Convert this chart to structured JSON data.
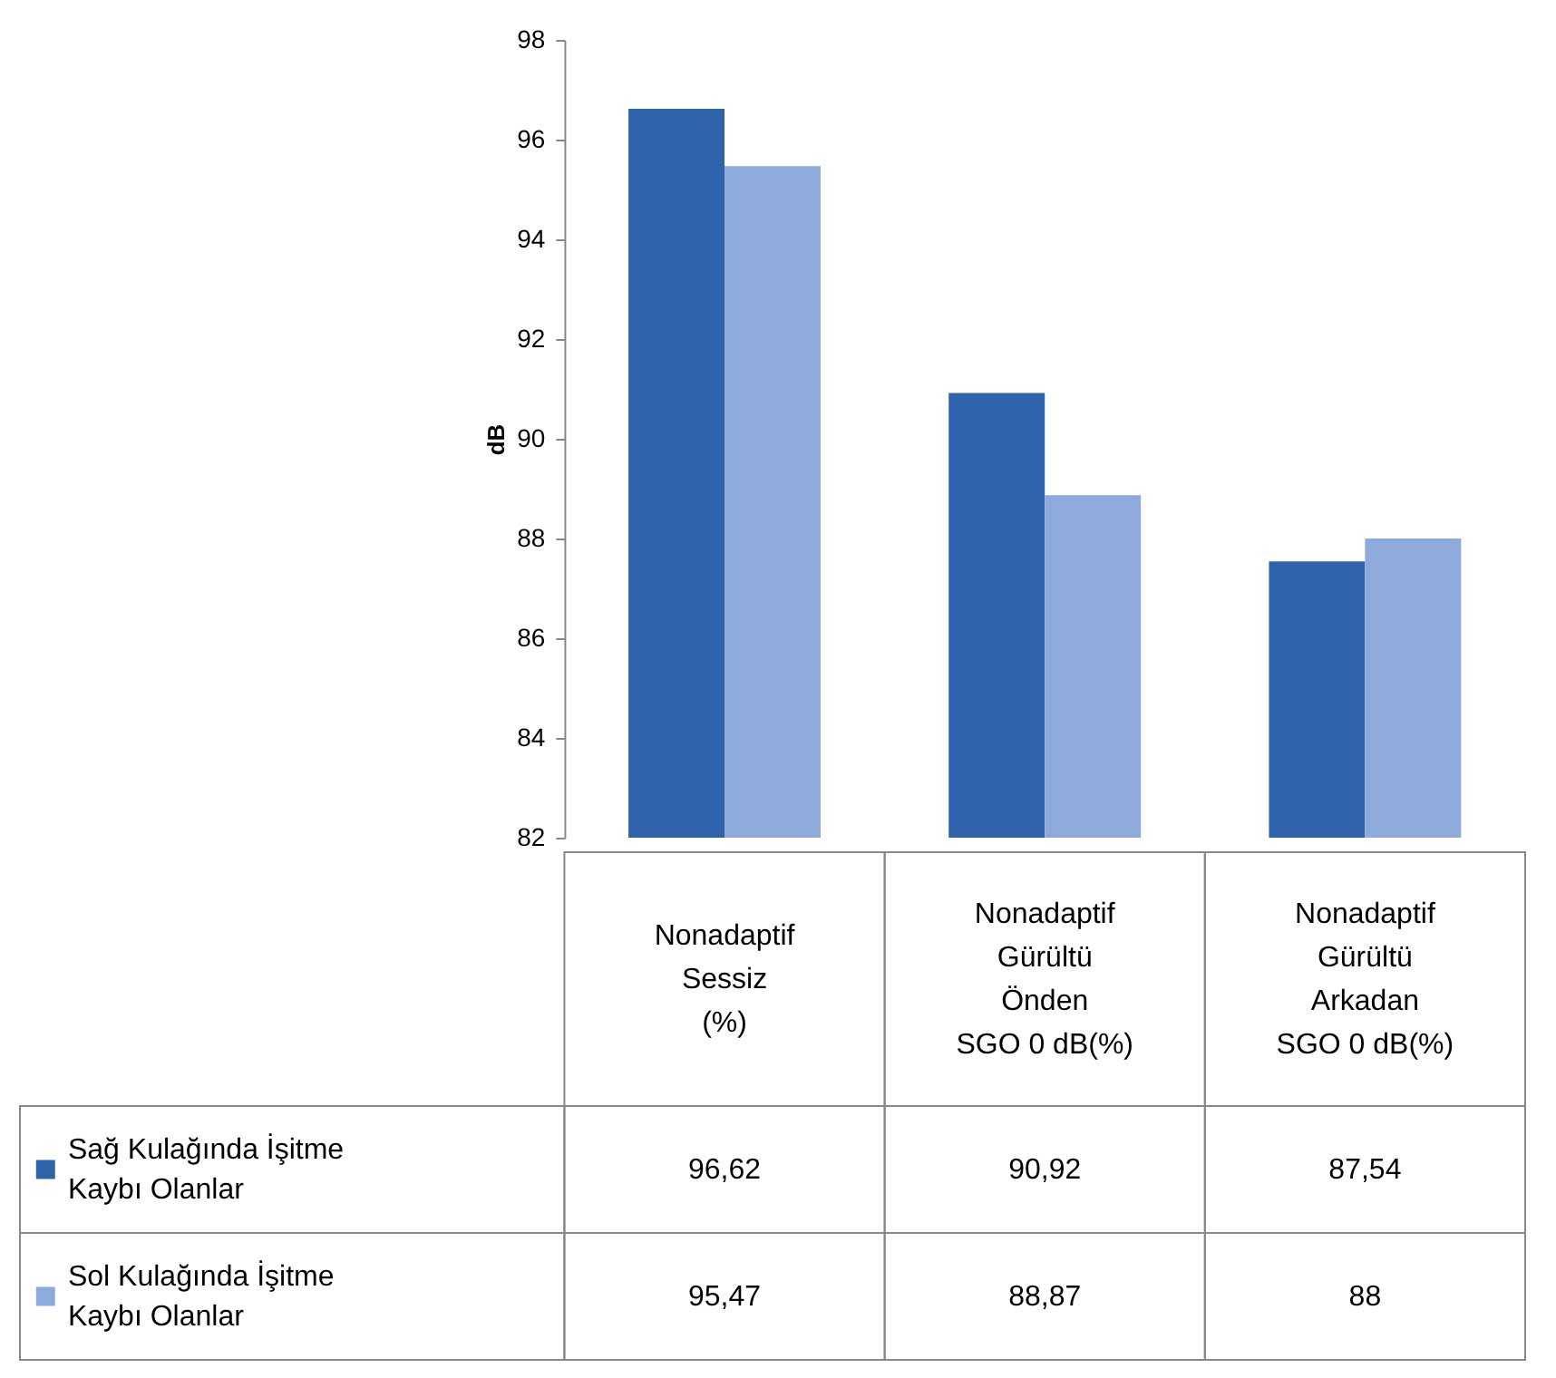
{
  "chart_data": {
    "type": "bar",
    "ylabel": "dB",
    "categories": [
      "Nonadaptif\nSessiz\n(%)",
      "Nonadaptif\nGürültü\nÖnden\nSGO 0 dB(%)",
      "Nonadaptif\nGürültü\nArkadan\nSGO 0 dB(%)"
    ],
    "series": [
      {
        "name": "Sağ Kulağında İşitme\nKaybı Olanlar",
        "color": "#2f64ad",
        "values": [
          96.62,
          90.92,
          87.54
        ],
        "value_labels": [
          "96,62",
          "90,92",
          "87,54"
        ]
      },
      {
        "name": "Sol Kulağında İşitme\nKaybı Olanlar",
        "color": "#8eaadb",
        "values": [
          95.47,
          88.87,
          88
        ],
        "value_labels": [
          "95,47",
          "88,87",
          "88"
        ]
      }
    ],
    "ylim": [
      82,
      98
    ],
    "yticks": [
      82,
      84,
      86,
      88,
      90,
      92,
      94,
      96,
      98
    ],
    "grid": false,
    "legend": "bottom"
  }
}
